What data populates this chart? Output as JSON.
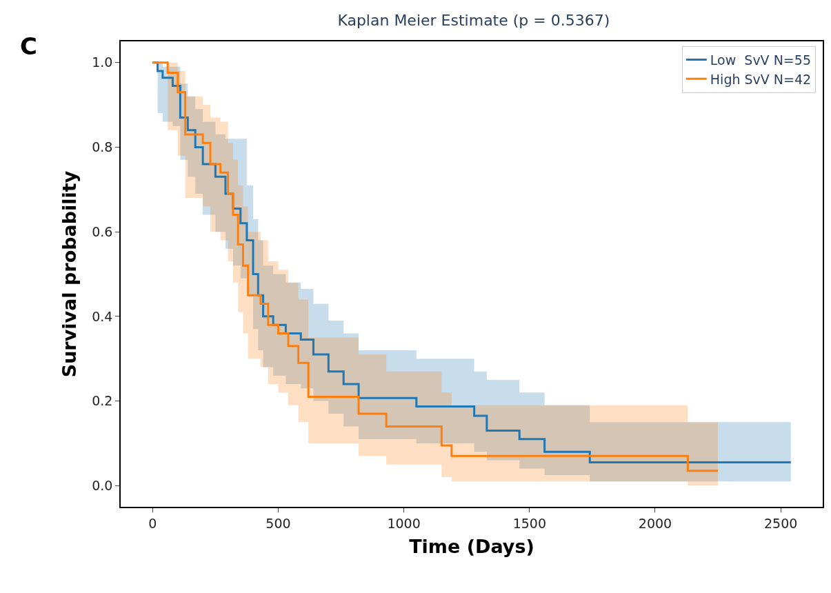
{
  "chart_data": {
    "type": "step",
    "title": "Kaplan Meier Estimate (p = 0.5367)",
    "xlabel": "Time (Days)",
    "ylabel": "Survival probability",
    "annotations": [
      "C"
    ],
    "series": [
      {
        "name": "Low  SvV N=55",
        "color": "#1f77b4",
        "x": [
          0,
          20,
          40,
          80,
          110,
          140,
          170,
          200,
          250,
          290,
          320,
          350,
          375,
          400,
          420,
          440,
          480,
          530,
          590,
          640,
          700,
          760,
          820,
          1050,
          1280,
          1330,
          1460,
          1560,
          1740,
          2540
        ],
        "values": [
          1.0,
          0.98,
          0.964,
          0.945,
          0.87,
          0.84,
          0.8,
          0.76,
          0.73,
          0.69,
          0.655,
          0.62,
          0.58,
          0.5,
          0.45,
          0.4,
          0.38,
          0.36,
          0.345,
          0.31,
          0.27,
          0.24,
          0.207,
          0.187,
          0.165,
          0.13,
          0.11,
          0.08,
          0.055,
          0.055
        ],
        "lower": [
          1.0,
          0.88,
          0.86,
          0.85,
          0.77,
          0.73,
          0.69,
          0.64,
          0.6,
          0.56,
          0.52,
          0.49,
          0.45,
          0.37,
          0.32,
          0.28,
          0.26,
          0.24,
          0.23,
          0.2,
          0.17,
          0.14,
          0.11,
          0.1,
          0.08,
          0.06,
          0.04,
          0.025,
          0.01,
          0.01
        ],
        "upper": [
          1.0,
          1.0,
          0.99,
          0.99,
          0.95,
          0.92,
          0.89,
          0.86,
          0.83,
          0.82,
          0.82,
          0.82,
          0.71,
          0.63,
          0.58,
          0.52,
          0.5,
          0.48,
          0.465,
          0.43,
          0.39,
          0.36,
          0.32,
          0.3,
          0.27,
          0.25,
          0.22,
          0.19,
          0.15,
          0.15
        ]
      },
      {
        "name": "High SvV N=42",
        "color": "#ff7f0e",
        "x": [
          0,
          60,
          100,
          130,
          200,
          230,
          270,
          300,
          320,
          340,
          360,
          380,
          430,
          460,
          500,
          540,
          580,
          620,
          820,
          930,
          1150,
          1190,
          2130,
          2250
        ],
        "values": [
          1.0,
          0.976,
          0.93,
          0.83,
          0.81,
          0.76,
          0.74,
          0.69,
          0.64,
          0.57,
          0.52,
          0.45,
          0.43,
          0.38,
          0.36,
          0.33,
          0.29,
          0.21,
          0.17,
          0.14,
          0.095,
          0.07,
          0.035,
          0.035
        ],
        "lower": [
          1.0,
          0.84,
          0.78,
          0.68,
          0.66,
          0.6,
          0.58,
          0.53,
          0.48,
          0.41,
          0.36,
          0.3,
          0.28,
          0.24,
          0.22,
          0.19,
          0.15,
          0.1,
          0.07,
          0.05,
          0.02,
          0.01,
          0.0,
          0.0
        ],
        "upper": [
          1.0,
          1.0,
          0.98,
          0.92,
          0.9,
          0.87,
          0.86,
          0.81,
          0.77,
          0.71,
          0.66,
          0.6,
          0.58,
          0.53,
          0.51,
          0.48,
          0.44,
          0.35,
          0.31,
          0.27,
          0.22,
          0.19,
          0.15,
          0.15
        ]
      }
    ],
    "xlim": [
      -127,
      2667
    ],
    "xticks": [
      0,
      500,
      1000,
      1500,
      2000,
      2500
    ],
    "ylim": [
      -0.05,
      1.05
    ],
    "yticks": [
      {
        "value": 0,
        "label": "0.0"
      },
      {
        "value": 0.2,
        "label": "0.2"
      },
      {
        "value": 0.4,
        "label": "0.4"
      },
      {
        "value": 0.6,
        "label": "0.6"
      },
      {
        "value": 0.8,
        "label": "0.8"
      },
      {
        "value": 1,
        "label": "1.0"
      }
    ],
    "legend": "top right"
  }
}
